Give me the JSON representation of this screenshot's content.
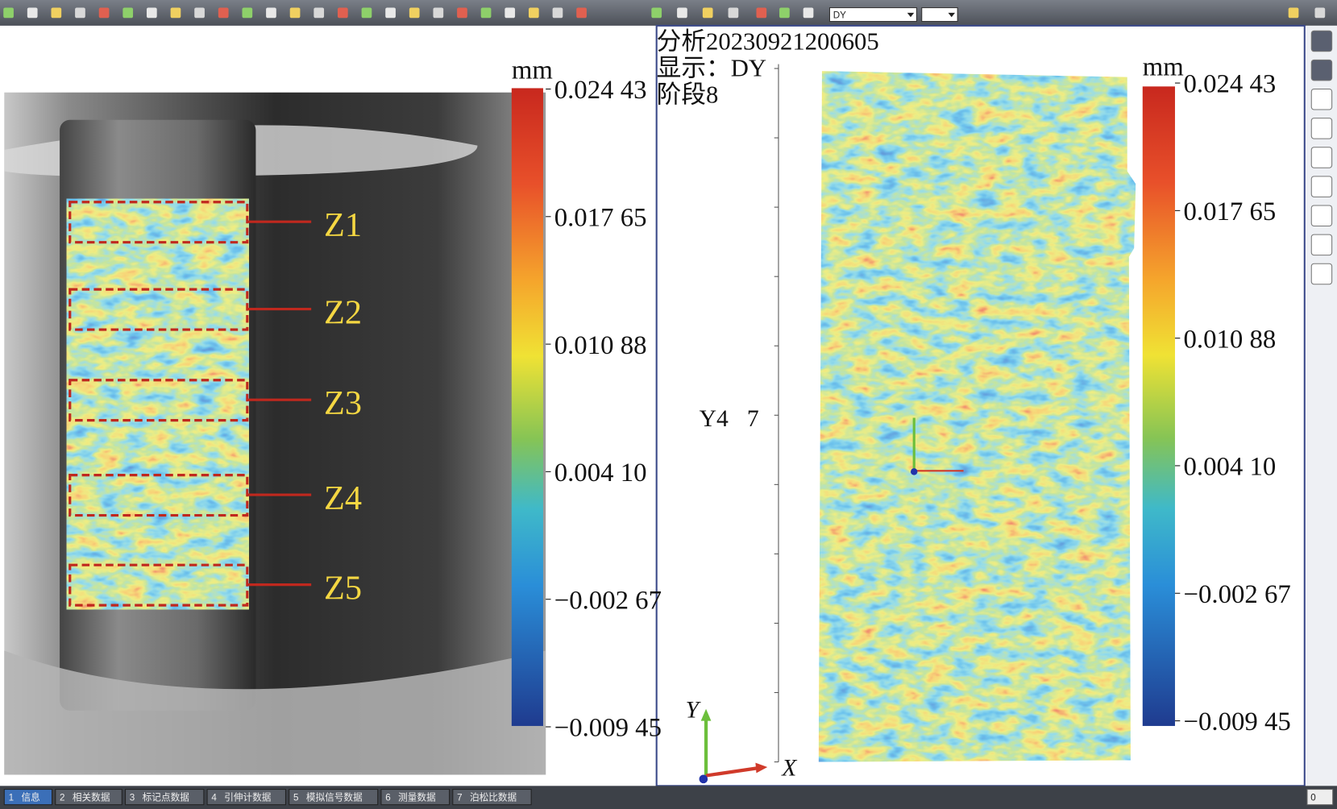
{
  "toolbar": {
    "view_select": "DY"
  },
  "left_panel": {
    "colorbar": {
      "unit": "mm",
      "tick_labels": [
        "0.024 43",
        "0.017 65",
        "0.010 88",
        "0.004 10",
        "−0.002 67",
        "−0.009 45"
      ]
    },
    "zones": [
      "Z1",
      "Z2",
      "Z3",
      "Z4",
      "Z5"
    ]
  },
  "right_panel": {
    "info": [
      "分析20230921200605",
      "显示：DY",
      "阶段8"
    ],
    "axis_label": "Y4",
    "axis_value": "7",
    "colorbar": {
      "unit": "mm",
      "tick_labels": [
        "0.024 43",
        "0.017 65",
        "0.010 88",
        "0.004 10",
        "−0.002 67",
        "−0.009 45"
      ]
    },
    "axes": {
      "y": "Y",
      "x": "X"
    }
  },
  "status_bar": {
    "tabs": [
      {
        "number": "1",
        "label": "信息"
      },
      {
        "number": "2",
        "label": "相关数据"
      },
      {
        "number": "3",
        "label": "标记点数据"
      },
      {
        "number": "4",
        "label": "引伸计数据"
      },
      {
        "number": "5",
        "label": "模拟信号数据"
      },
      {
        "number": "6",
        "label": "测量数据"
      },
      {
        "number": "7",
        "label": "泊松比数据"
      }
    ],
    "right_select": "0"
  }
}
